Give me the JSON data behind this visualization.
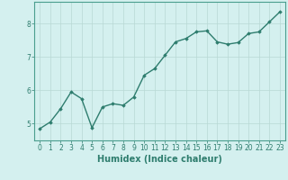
{
  "x": [
    0,
    1,
    2,
    3,
    4,
    5,
    6,
    7,
    8,
    9,
    10,
    11,
    12,
    13,
    14,
    15,
    16,
    17,
    18,
    19,
    20,
    21,
    22,
    23
  ],
  "y": [
    4.85,
    5.05,
    5.45,
    5.95,
    5.75,
    4.88,
    5.5,
    5.6,
    5.55,
    5.8,
    6.45,
    6.65,
    7.05,
    7.45,
    7.55,
    7.75,
    7.78,
    7.45,
    7.38,
    7.43,
    7.7,
    7.75,
    8.05,
    8.35
  ],
  "line_color": "#2e7d6e",
  "marker": "D",
  "markersize": 1.8,
  "linewidth": 1.0,
  "xlabel": "Humidex (Indice chaleur)",
  "xlabel_fontsize": 7,
  "xlim": [
    -0.5,
    23.5
  ],
  "ylim": [
    4.5,
    8.65
  ],
  "yticks": [
    5,
    6,
    7,
    8
  ],
  "xticks": [
    0,
    1,
    2,
    3,
    4,
    5,
    6,
    7,
    8,
    9,
    10,
    11,
    12,
    13,
    14,
    15,
    16,
    17,
    18,
    19,
    20,
    21,
    22,
    23
  ],
  "background_color": "#d4f0ef",
  "grid_color": "#b8d8d4",
  "tick_color": "#2e7d6e",
  "tick_labelsize": 5.5,
  "spine_color": "#4a9e8e"
}
